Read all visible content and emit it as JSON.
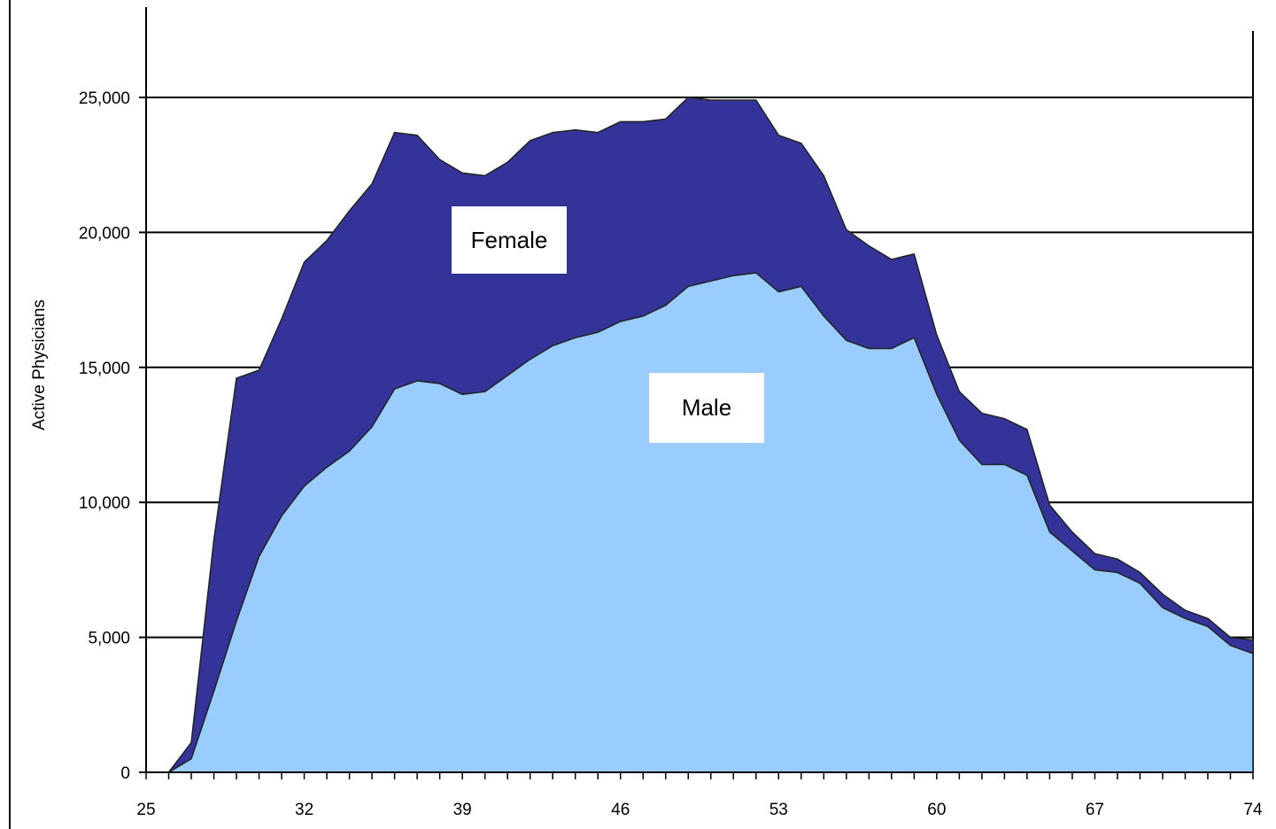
{
  "chart_data": {
    "type": "area",
    "stacked": true,
    "ylabel": "Active Physicians",
    "xlabel": "",
    "xlim": [
      25,
      74
    ],
    "ylim": [
      0,
      28000
    ],
    "grid": true,
    "x_tick_labels": [
      "25",
      "32",
      "39",
      "46",
      "53",
      "60",
      "67",
      "74"
    ],
    "y_tick_labels": [
      "0",
      "5,000",
      "10,000",
      "15,000",
      "20,000",
      "25,000"
    ],
    "x": [
      25,
      26,
      27,
      28,
      29,
      30,
      31,
      32,
      33,
      34,
      35,
      36,
      37,
      38,
      39,
      40,
      41,
      42,
      43,
      44,
      45,
      46,
      47,
      48,
      49,
      50,
      51,
      52,
      53,
      54,
      55,
      56,
      57,
      58,
      59,
      60,
      61,
      62,
      63,
      64,
      65,
      66,
      67,
      68,
      69,
      70,
      71,
      72,
      73,
      74
    ],
    "series": [
      {
        "name": "Male",
        "color": "#99ccff",
        "values": [
          0,
          0,
          500,
          3000,
          5600,
          8000,
          9500,
          10600,
          11300,
          11900,
          12800,
          14200,
          14500,
          14400,
          14000,
          14100,
          14700,
          15300,
          15800,
          16100,
          16300,
          16700,
          16900,
          17300,
          18000,
          18200,
          18400,
          18500,
          17800,
          18000,
          16900,
          16000,
          15700,
          15700,
          16100,
          14000,
          12300,
          11400,
          11400,
          11000,
          8900,
          8200,
          7500,
          7400,
          7000,
          6100,
          5700,
          5400,
          4700,
          4400
        ]
      },
      {
        "name": "Female",
        "color": "#333399",
        "values": [
          0,
          0,
          600,
          5600,
          9000,
          6900,
          7300,
          8300,
          8400,
          8900,
          9000,
          9500,
          9100,
          8300,
          8200,
          8000,
          7900,
          8100,
          7900,
          7700,
          7400,
          7400,
          7200,
          6900,
          7000,
          6700,
          6500,
          6400,
          5800,
          5300,
          5200,
          4100,
          3800,
          3300,
          3100,
          2200,
          1800,
          1900,
          1700,
          1700,
          1000,
          700,
          600,
          500,
          400,
          500,
          300,
          300,
          300,
          500
        ]
      }
    ],
    "annotations": [
      {
        "text": "Female",
        "series": "Female"
      },
      {
        "text": "Male",
        "series": "Male"
      }
    ]
  }
}
